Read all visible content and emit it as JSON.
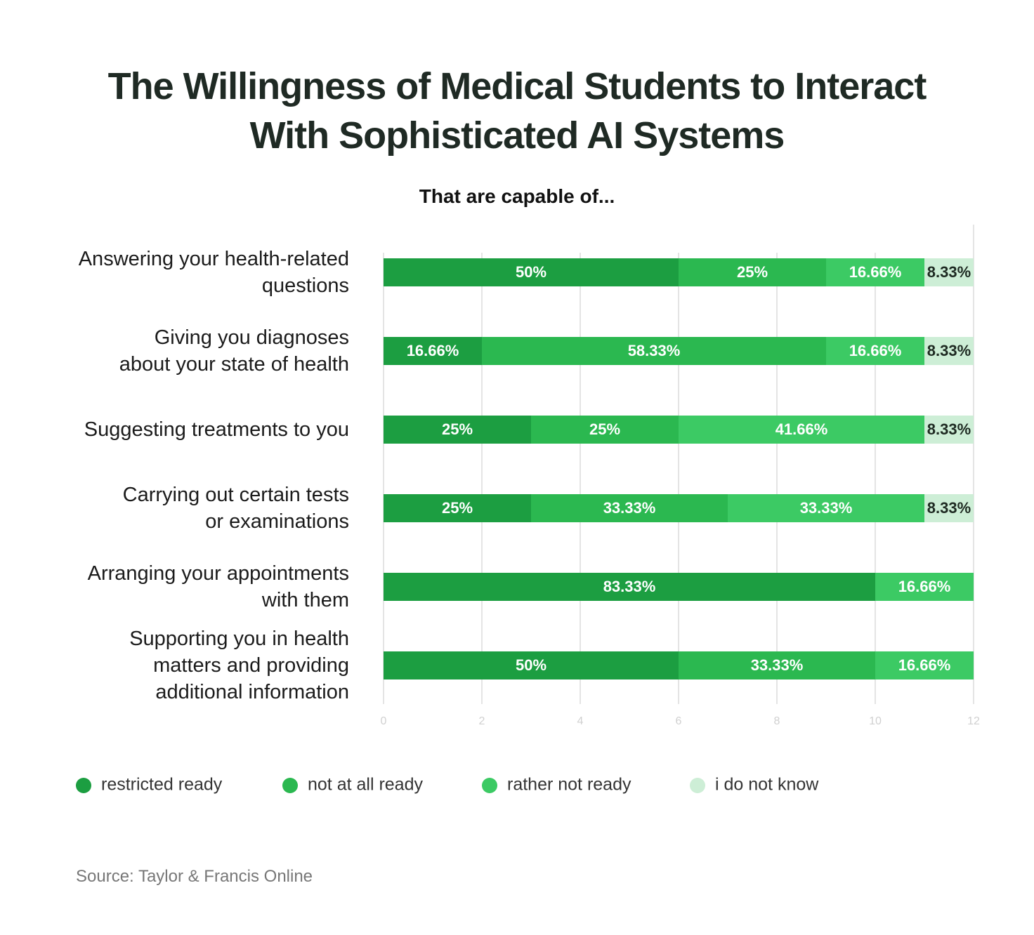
{
  "chart_data": {
    "type": "stacked_bar_horizontal",
    "title": "The Willingness of Medical Students to Interact\nWith Sophisticated AI Systems",
    "subtitle": "That are capable of...",
    "categories": [
      "Answering your health-related\nquestions",
      "Giving you diagnoses\nabout your state of health",
      "Suggesting treatments to you",
      "Carrying out certain tests\nor examinations",
      "Arranging your appointments\nwith them",
      "Supporting you in health\nmatters and providing\nadditional information"
    ],
    "series": [
      {
        "name": "restricted ready",
        "color": "#1c9e41",
        "values": [
          6,
          2,
          3,
          3,
          10,
          6
        ],
        "value_labels": [
          "50%",
          "16.66%",
          "25%",
          "25%",
          "83.33%",
          "50%"
        ]
      },
      {
        "name": "not at all ready",
        "color": "#2bb850",
        "values": [
          3,
          7,
          3,
          4,
          null,
          4
        ],
        "value_labels": [
          "25%",
          "58.33%",
          "25%",
          "33.33%",
          null,
          "33.33%"
        ]
      },
      {
        "name": "rather not ready",
        "color": "#3cca64",
        "values": [
          2,
          2,
          5,
          4,
          2,
          2
        ],
        "value_labels": [
          "16.66%",
          "16.66%",
          "41.66%",
          "33.33%",
          "16.66%",
          "16.66%"
        ]
      },
      {
        "name": "i do not know",
        "color": "#cdeed6",
        "values": [
          1,
          1,
          1,
          1,
          null,
          null
        ],
        "value_labels": [
          "8.33%",
          "8.33%",
          "8.33%",
          "8.33%",
          null,
          null
        ]
      }
    ],
    "xlim": [
      0,
      12
    ],
    "xticks": [
      0,
      2,
      4,
      6,
      8,
      10,
      12
    ],
    "grid": true,
    "legend": "bottom",
    "source": "Source: Taylor & Francis Online"
  }
}
